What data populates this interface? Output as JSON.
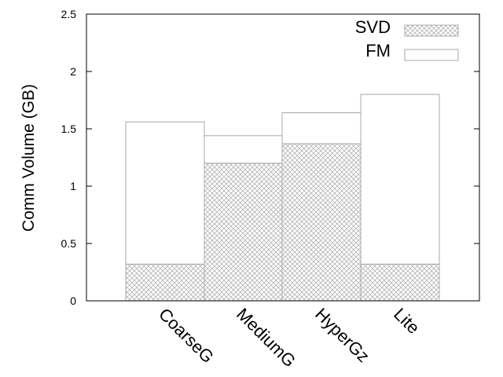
{
  "chart_data": {
    "type": "bar",
    "stacked": true,
    "categories": [
      "CoarseG",
      "MediumG",
      "HyperGz",
      "Lite"
    ],
    "series": [
      {
        "name": "SVD",
        "values": [
          0.32,
          1.2,
          1.37,
          0.32
        ],
        "pattern": "crosshatch"
      },
      {
        "name": "FM",
        "values": [
          1.24,
          0.24,
          0.27,
          1.48
        ],
        "pattern": "none"
      }
    ],
    "ylabel": "Comm Volume (GB)",
    "xlabel": "",
    "ylim": [
      0,
      2.5
    ],
    "yticks": [
      0,
      0.5,
      1,
      1.5,
      2,
      2.5
    ],
    "ytick_labels": [
      "0",
      "0.5",
      "1",
      "1.5",
      "2",
      "2.5"
    ],
    "legend_position": "top-right",
    "grid": false,
    "colors": {
      "bar_stroke": "#a8a8a8",
      "hatch": "#b4b4b4",
      "axis": "#000000"
    }
  }
}
